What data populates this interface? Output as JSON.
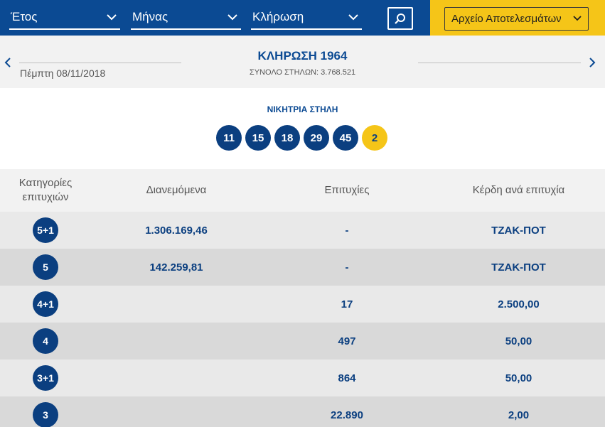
{
  "filters": {
    "year_label": "Έτος",
    "month_label": "Μήνας",
    "draw_label": "Κλήρωση"
  },
  "archive_button": "Αρχείο Αποτελεσμάτων",
  "draw": {
    "date": "Πέμπτη 08/11/2018",
    "title": "ΚΛΗΡΩΣΗ 1964",
    "total_columns": "ΣΥΝΟΛΟ ΣΤΗΛΩΝ: 3.768.521"
  },
  "winning": {
    "title": "ΝΙΚΗΤΡΙΑ ΣΤΗΛΗ",
    "numbers": [
      "11",
      "15",
      "18",
      "29",
      "45"
    ],
    "joker": "2"
  },
  "table": {
    "headers": {
      "category": "Κατηγορίες επιτυχιών",
      "distributed": "Διανεμόμενα",
      "winners": "Επιτυχίες",
      "prize": "Κέρδη ανά επιτυχία"
    },
    "rows": [
      {
        "category": "5+1",
        "distributed": "1.306.169,46",
        "winners": "-",
        "prize": "ΤΖΑΚ-ΠΟΤ"
      },
      {
        "category": "5",
        "distributed": "142.259,81",
        "winners": "-",
        "prize": "ΤΖΑΚ-ΠΟΤ"
      },
      {
        "category": "4+1",
        "distributed": "",
        "winners": "17",
        "prize": "2.500,00"
      },
      {
        "category": "4",
        "distributed": "",
        "winners": "497",
        "prize": "50,00"
      },
      {
        "category": "3+1",
        "distributed": "",
        "winners": "864",
        "prize": "50,00"
      },
      {
        "category": "3",
        "distributed": "",
        "winners": "22.890",
        "prize": "2,00"
      }
    ]
  },
  "icons": {
    "dropdown": "chevron-down-icon",
    "search": "search-icon",
    "prev": "chevron-left-icon",
    "next": "chevron-right-icon"
  },
  "colors": {
    "brand_blue": "#0b4a93",
    "ball_blue": "#0b3f80",
    "accent_yellow": "#f5c518"
  }
}
